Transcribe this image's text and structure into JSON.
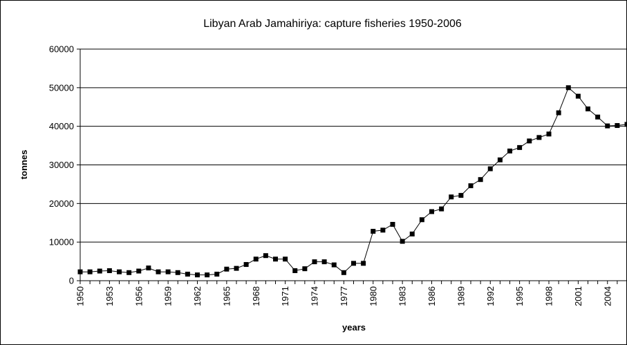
{
  "chart_data": {
    "type": "line",
    "title": "Libyan Arab Jamahiriya: capture fisheries 1950-2006",
    "xlabel": "years",
    "ylabel": "tonnes",
    "ylim": [
      0,
      60000
    ],
    "xlim": [
      1950,
      2006
    ],
    "y_ticks": [
      "0",
      "10000",
      "20000",
      "30000",
      "40000",
      "50000",
      "60000"
    ],
    "x_ticks": [
      "1950",
      "1953",
      "1956",
      "1959",
      "1962",
      "1965",
      "1968",
      "1971",
      "1974",
      "1977",
      "1980",
      "1983",
      "1986",
      "1989",
      "1992",
      "1995",
      "1998",
      "2001",
      "2004"
    ],
    "grid": true,
    "legend": "none",
    "series_color": "#000000",
    "marker": "square",
    "series": [
      {
        "x": [
          1950,
          1951,
          1952,
          1953,
          1954,
          1955,
          1956,
          1957,
          1958,
          1959,
          1960,
          1961,
          1962,
          1963,
          1964,
          1965,
          1966,
          1967,
          1968,
          1969,
          1970,
          1971,
          1972,
          1973,
          1974,
          1975,
          1976,
          1977,
          1978,
          1979,
          1980,
          1981,
          1982,
          1983,
          1984,
          1985,
          1986,
          1987,
          1988,
          1989,
          1990,
          1991,
          1992,
          1993,
          1994,
          1995,
          1996,
          1997,
          1998,
          1999,
          2000,
          2001,
          2002,
          2003,
          2004,
          2005,
          2006
        ],
        "values": [
          2300,
          2300,
          2500,
          2600,
          2300,
          2100,
          2500,
          3300,
          2300,
          2300,
          2100,
          1700,
          1500,
          1500,
          1700,
          3000,
          3200,
          4200,
          5600,
          6500,
          5600,
          5600,
          2600,
          3100,
          4900,
          4900,
          4100,
          2100,
          4500,
          4500,
          12800,
          13100,
          14600,
          10200,
          12100,
          15800,
          17900,
          18600,
          21700,
          22100,
          24600,
          26200,
          29000,
          31300,
          33600,
          34500,
          36200,
          37100,
          38000,
          43500,
          50000,
          47800,
          44500,
          42400,
          40100,
          40200,
          40500
        ]
      }
    ]
  }
}
